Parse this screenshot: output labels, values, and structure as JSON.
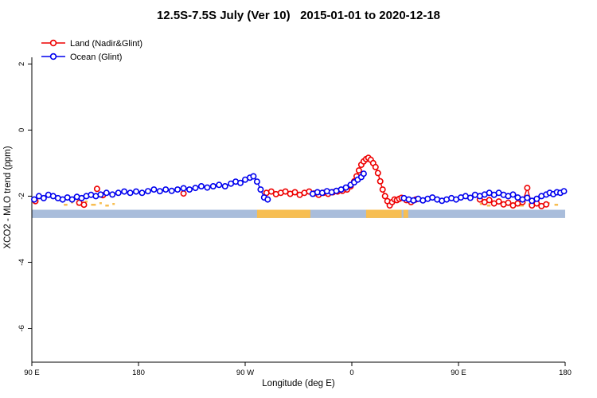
{
  "chart_data": {
    "type": "line",
    "title": "12.5S-7.5S July (Ver 10)   2015-01-01 to 2020-12-18",
    "xlabel": "Longitude (deg E)",
    "ylabel": "XCO2 - MLO trend (ppm)",
    "xlim": [
      90,
      540
    ],
    "ylim": [
      -7.0,
      2.9
    ],
    "grid": false,
    "legend_position": "top-left",
    "x_ticks": [
      {
        "value": 90,
        "label": "90 E"
      },
      {
        "value": 180,
        "label": "180"
      },
      {
        "value": 270,
        "label": "90 W"
      },
      {
        "value": 360,
        "label": "0"
      },
      {
        "value": 450,
        "label": "90 E"
      },
      {
        "value": 540,
        "label": "180"
      }
    ],
    "y_ticks": [
      {
        "value": 2,
        "label": "2"
      },
      {
        "value": 0,
        "label": "0"
      },
      {
        "value": -2,
        "label": "-2"
      },
      {
        "value": -4,
        "label": "-4"
      },
      {
        "value": -6,
        "label": "-6"
      }
    ],
    "legend": [
      {
        "label": "Land (Nadir&Glint)",
        "color": "#EE0000"
      },
      {
        "label": "Ocean (Glint)",
        "color": "#0000EE"
      }
    ],
    "land_ocean_band": {
      "top": -2.41,
      "bottom": -2.66,
      "ocean_color": "#A9BDDB",
      "land_color": "#F7BE52",
      "land_segments": [
        [
          280,
          325
        ],
        [
          372,
          402
        ],
        [
          403.5,
          407.5
        ]
      ],
      "speckles": [
        {
          "x1": 117,
          "x2": 120,
          "dy": 5
        },
        {
          "x1": 123,
          "x2": 125,
          "dy": 8
        },
        {
          "x1": 128,
          "x2": 132,
          "dy": 5
        },
        {
          "x1": 135,
          "x2": 137,
          "dy": 9
        },
        {
          "x1": 140,
          "x2": 144,
          "dy": 5
        },
        {
          "x1": 147,
          "x2": 149,
          "dy": 7
        },
        {
          "x1": 152,
          "x2": 155,
          "dy": 4
        },
        {
          "x1": 158,
          "x2": 160,
          "dy": 6
        },
        {
          "x1": 468,
          "x2": 470,
          "dy": 6
        },
        {
          "x1": 474,
          "x2": 477,
          "dy": 4
        },
        {
          "x1": 481,
          "x2": 483,
          "dy": 8
        },
        {
          "x1": 487,
          "x2": 491,
          "dy": 5
        },
        {
          "x1": 495,
          "x2": 497,
          "dy": 7
        },
        {
          "x1": 501,
          "x2": 505,
          "dy": 4
        },
        {
          "x1": 509,
          "x2": 512,
          "dy": 6
        },
        {
          "x1": 517,
          "x2": 520,
          "dy": 5
        },
        {
          "x1": 524,
          "x2": 527,
          "dy": 7
        },
        {
          "x1": 531,
          "x2": 534,
          "dy": 5
        }
      ]
    },
    "series": [
      {
        "name": "Land (Nadir&Glint)",
        "color": "#EE0000",
        "segments": [
          [
            [
              93,
              -2.15
            ]
          ],
          [
            [
              130,
              -2.2
            ],
            [
              134,
              -2.26
            ]
          ],
          [
            [
              145,
              -1.78
            ]
          ],
          [
            [
              150,
              -1.97
            ]
          ],
          [
            [
              218,
              -1.92
            ]
          ],
          [
            [
              288,
              -1.9
            ],
            [
              292,
              -1.86
            ],
            [
              296,
              -1.94
            ],
            [
              300,
              -1.9
            ],
            [
              304,
              -1.86
            ],
            [
              308,
              -1.93
            ],
            [
              312,
              -1.88
            ],
            [
              316,
              -1.96
            ],
            [
              320,
              -1.9
            ],
            [
              324,
              -1.86
            ],
            [
              328,
              -1.92
            ],
            [
              332,
              -1.96
            ],
            [
              336,
              -1.9
            ],
            [
              340,
              -1.93
            ],
            [
              344,
              -1.88
            ],
            [
              348,
              -1.86
            ],
            [
              352,
              -1.84
            ],
            [
              356,
              -1.8
            ],
            [
              359,
              -1.7
            ],
            [
              362,
              -1.55
            ],
            [
              364,
              -1.4
            ],
            [
              366,
              -1.22
            ],
            [
              368,
              -1.05
            ],
            [
              370,
              -0.95
            ],
            [
              372,
              -0.88
            ],
            [
              374,
              -0.84
            ],
            [
              376,
              -0.9
            ],
            [
              378,
              -1.0
            ],
            [
              380,
              -1.12
            ],
            [
              382,
              -1.3
            ],
            [
              384,
              -1.55
            ],
            [
              386,
              -1.8
            ],
            [
              388,
              -2.0
            ],
            [
              390,
              -2.15
            ],
            [
              392,
              -2.28
            ],
            [
              394,
              -2.18
            ],
            [
              396,
              -2.1
            ],
            [
              398,
              -2.12
            ],
            [
              400,
              -2.08
            ],
            [
              402,
              -2.05
            ]
          ],
          [
            [
              406,
              -2.12
            ],
            [
              410,
              -2.18
            ],
            [
              414,
              -2.1
            ]
          ],
          [
            [
              468,
              -2.1
            ],
            [
              472,
              -2.18
            ],
            [
              476,
              -2.12
            ],
            [
              480,
              -2.22
            ],
            [
              484,
              -2.16
            ],
            [
              488,
              -2.25
            ],
            [
              492,
              -2.2
            ],
            [
              496,
              -2.28
            ],
            [
              500,
              -2.22
            ],
            [
              504,
              -2.18
            ],
            [
              508,
              -1.75
            ],
            [
              512,
              -2.28
            ],
            [
              516,
              -2.22
            ],
            [
              520,
              -2.3
            ],
            [
              524,
              -2.25
            ]
          ]
        ]
      },
      {
        "name": "Ocean (Glint)",
        "color": "#0000EE",
        "segments": [
          [
            [
              92,
              -2.1
            ],
            [
              96,
              -2.0
            ],
            [
              100,
              -2.06
            ],
            [
              104,
              -1.96
            ],
            [
              108,
              -2.0
            ],
            [
              112,
              -2.06
            ],
            [
              116,
              -2.1
            ],
            [
              120,
              -2.04
            ],
            [
              124,
              -2.1
            ],
            [
              128,
              -2.02
            ],
            [
              132,
              -2.06
            ],
            [
              136,
              -2.0
            ],
            [
              140,
              -1.96
            ],
            [
              144,
              -2.0
            ],
            [
              148,
              -1.95
            ],
            [
              153,
              -1.9
            ],
            [
              158,
              -1.95
            ],
            [
              163,
              -1.9
            ],
            [
              168,
              -1.86
            ],
            [
              173,
              -1.9
            ],
            [
              178,
              -1.86
            ],
            [
              183,
              -1.9
            ],
            [
              188,
              -1.85
            ],
            [
              193,
              -1.8
            ],
            [
              198,
              -1.85
            ],
            [
              203,
              -1.8
            ],
            [
              208,
              -1.84
            ],
            [
              213,
              -1.8
            ],
            [
              218,
              -1.76
            ],
            [
              223,
              -1.8
            ],
            [
              228,
              -1.75
            ],
            [
              233,
              -1.7
            ],
            [
              238,
              -1.74
            ],
            [
              243,
              -1.7
            ],
            [
              248,
              -1.66
            ],
            [
              253,
              -1.7
            ],
            [
              258,
              -1.62
            ],
            [
              262,
              -1.56
            ],
            [
              266,
              -1.6
            ],
            [
              270,
              -1.5
            ],
            [
              274,
              -1.44
            ],
            [
              277,
              -1.4
            ],
            [
              280,
              -1.56
            ],
            [
              283,
              -1.8
            ],
            [
              286,
              -2.04
            ],
            [
              289,
              -2.1
            ]
          ],
          [
            [
              327,
              -1.93
            ],
            [
              331,
              -1.88
            ],
            [
              335,
              -1.9
            ],
            [
              339,
              -1.85
            ],
            [
              343,
              -1.88
            ],
            [
              347,
              -1.84
            ],
            [
              351,
              -1.8
            ],
            [
              355,
              -1.74
            ],
            [
              359,
              -1.66
            ],
            [
              362,
              -1.58
            ],
            [
              365,
              -1.5
            ],
            [
              368,
              -1.42
            ],
            [
              370,
              -1.32
            ]
          ],
          [
            [
              404,
              -2.06
            ],
            [
              408,
              -2.1
            ],
            [
              412,
              -2.13
            ],
            [
              416,
              -2.08
            ],
            [
              420,
              -2.13
            ],
            [
              424,
              -2.08
            ],
            [
              428,
              -2.04
            ],
            [
              432,
              -2.1
            ],
            [
              436,
              -2.14
            ],
            [
              440,
              -2.1
            ],
            [
              444,
              -2.06
            ],
            [
              448,
              -2.1
            ],
            [
              452,
              -2.04
            ],
            [
              456,
              -2.0
            ],
            [
              460,
              -2.05
            ],
            [
              464,
              -1.96
            ],
            [
              468,
              -2.0
            ],
            [
              472,
              -1.95
            ],
            [
              476,
              -1.9
            ],
            [
              480,
              -1.96
            ],
            [
              484,
              -1.9
            ],
            [
              488,
              -1.96
            ],
            [
              492,
              -2.0
            ],
            [
              496,
              -1.95
            ],
            [
              500,
              -2.04
            ],
            [
              504,
              -2.1
            ],
            [
              508,
              -2.05
            ],
            [
              512,
              -2.14
            ],
            [
              516,
              -2.08
            ],
            [
              520,
              -2.0
            ],
            [
              524,
              -1.95
            ],
            [
              527,
              -1.9
            ],
            [
              530,
              -1.94
            ],
            [
              533,
              -1.88
            ],
            [
              536,
              -1.9
            ],
            [
              539,
              -1.85
            ]
          ]
        ]
      }
    ]
  }
}
